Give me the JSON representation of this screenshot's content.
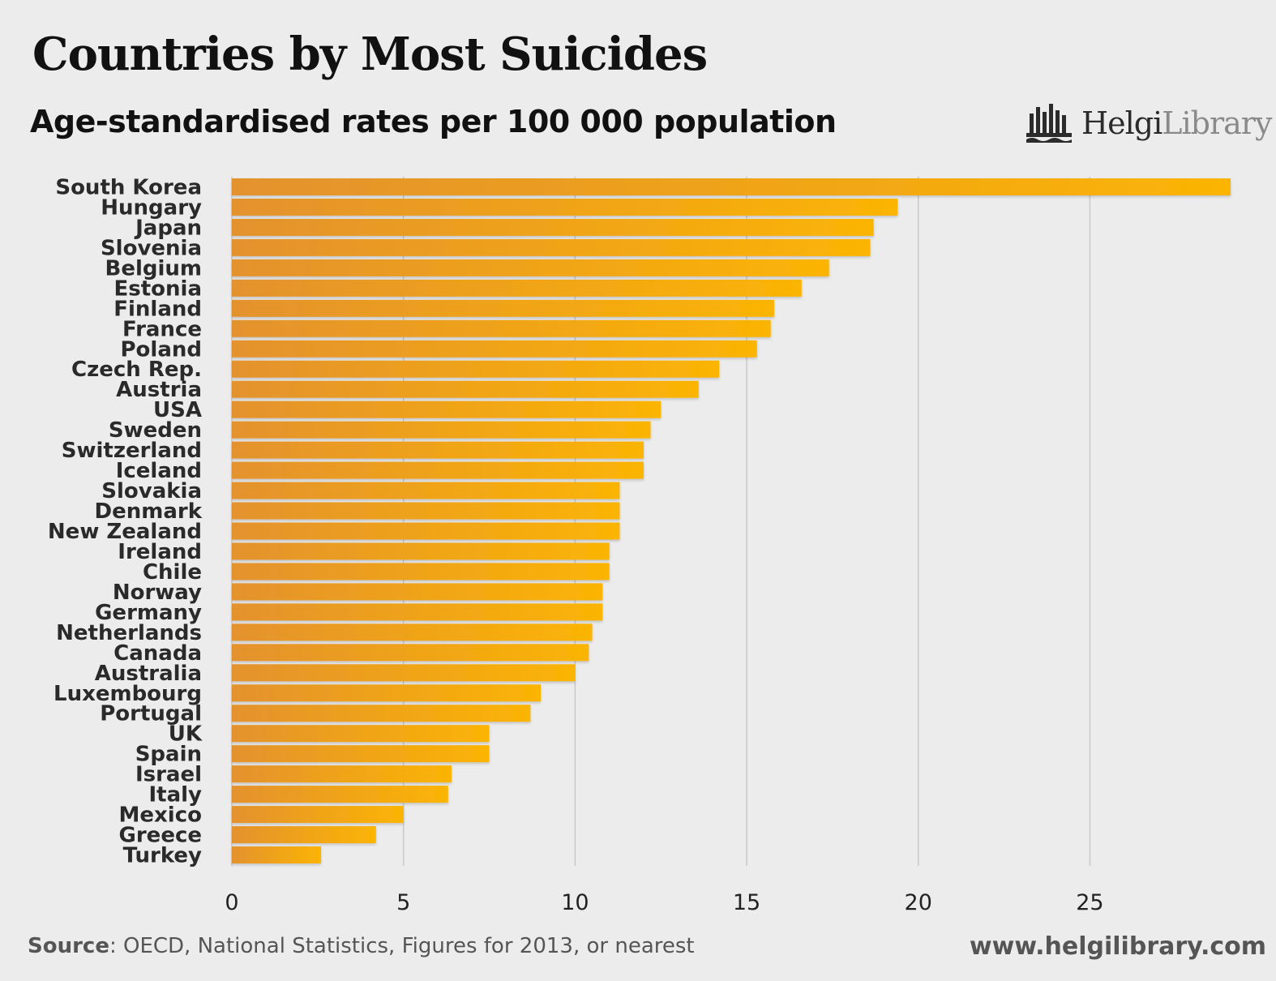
{
  "header": {
    "title": "Countries by Most Suicides",
    "subtitle": "Age-standardised rates per 100 000 population",
    "logo_text_bold": "Helgi",
    "logo_text_light": "Library"
  },
  "footer": {
    "source_label": "Source",
    "source_text": ": OECD, National Statistics, Figures for 2013, or nearest",
    "website": "www.helgilibrary.com"
  },
  "colors": {
    "bar_start": "#e3922e",
    "bar_end": "#fbb404",
    "background": "#ececec"
  },
  "chart_data": {
    "type": "bar",
    "orientation": "horizontal",
    "title": "Countries by Most Suicides",
    "subtitle": "Age-standardised rates per 100 000 population",
    "categories": [
      "South Korea",
      "Hungary",
      "Japan",
      "Slovenia",
      "Belgium",
      "Estonia",
      "Finland",
      "France",
      "Poland",
      "Czech Rep.",
      "Austria",
      "USA",
      "Sweden",
      "Switzerland",
      "Iceland",
      "Slovakia",
      "Denmark",
      "New Zealand",
      "Ireland",
      "Chile",
      "Norway",
      "Germany",
      "Netherlands",
      "Canada",
      "Australia",
      "Luxembourg",
      "Portugal",
      "UK",
      "Spain",
      "Israel",
      "Italy",
      "Mexico",
      "Greece",
      "Turkey"
    ],
    "values": [
      29.1,
      19.4,
      18.7,
      18.6,
      17.4,
      16.6,
      15.8,
      15.7,
      15.3,
      14.2,
      13.6,
      12.5,
      12.2,
      12.0,
      12.0,
      11.3,
      11.3,
      11.3,
      11.0,
      11.0,
      10.8,
      10.8,
      10.5,
      10.4,
      10.0,
      9.0,
      8.7,
      7.5,
      7.5,
      6.4,
      6.3,
      5.0,
      4.2,
      2.6
    ],
    "xticks": [
      0,
      5,
      10,
      15,
      20,
      25
    ],
    "xlim": [
      0,
      29.1
    ],
    "xlabel": "",
    "ylabel": "",
    "grid": "vertical"
  }
}
